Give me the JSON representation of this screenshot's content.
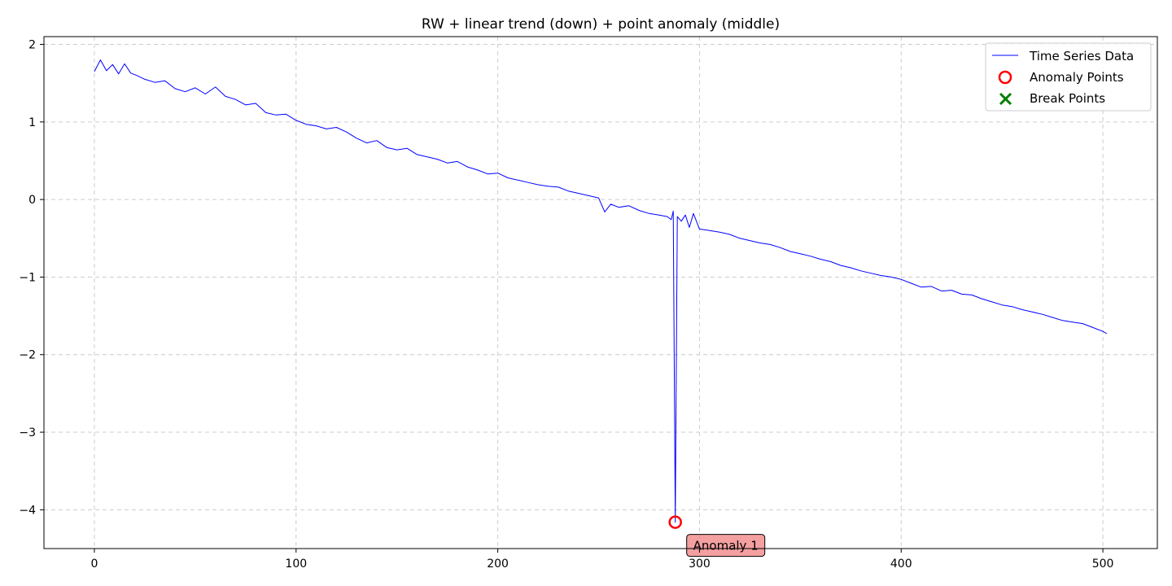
{
  "chart_data": {
    "type": "line",
    "title": "RW + linear trend (down) + point anomaly (middle)",
    "xlabel": "",
    "ylabel": "",
    "xlim": [
      -25,
      527
    ],
    "ylim": [
      -4.5,
      2.1
    ],
    "x_ticks": [
      0,
      100,
      200,
      300,
      400,
      500
    ],
    "x_tick_labels": [
      "0",
      "100",
      "200",
      "300",
      "400",
      "500"
    ],
    "y_ticks": [
      2,
      1,
      0,
      -1,
      -2,
      -3,
      -4
    ],
    "y_tick_labels": [
      "2",
      "1",
      "0",
      "−1",
      "−2",
      "−3",
      "−4"
    ],
    "grid": true,
    "legend_position": "top-right",
    "series": [
      {
        "name": "Time Series Data",
        "color": "#0000ff",
        "x": [
          0,
          3,
          6,
          9,
          12,
          15,
          18,
          21,
          25,
          30,
          35,
          40,
          45,
          50,
          55,
          60,
          65,
          70,
          75,
          80,
          85,
          90,
          95,
          100,
          105,
          110,
          115,
          120,
          125,
          130,
          135,
          140,
          145,
          150,
          155,
          160,
          165,
          170,
          175,
          180,
          185,
          190,
          195,
          200,
          205,
          210,
          215,
          220,
          225,
          230,
          235,
          240,
          245,
          250,
          253,
          256,
          260,
          265,
          270,
          275,
          280,
          284,
          286,
          287,
          288,
          289,
          291,
          293,
          295,
          297,
          300,
          305,
          310,
          315,
          320,
          325,
          330,
          335,
          340,
          345,
          350,
          355,
          360,
          365,
          370,
          375,
          380,
          385,
          390,
          395,
          400,
          405,
          410,
          415,
          420,
          425,
          430,
          435,
          440,
          445,
          450,
          455,
          460,
          465,
          470,
          475,
          480,
          485,
          490,
          495,
          500,
          502
        ],
        "y": [
          1.65,
          1.8,
          1.66,
          1.74,
          1.62,
          1.75,
          1.63,
          1.6,
          1.55,
          1.51,
          1.53,
          1.43,
          1.39,
          1.44,
          1.36,
          1.45,
          1.33,
          1.29,
          1.22,
          1.24,
          1.12,
          1.09,
          1.1,
          1.02,
          0.97,
          0.95,
          0.91,
          0.93,
          0.87,
          0.79,
          0.73,
          0.76,
          0.67,
          0.64,
          0.66,
          0.58,
          0.55,
          0.52,
          0.47,
          0.49,
          0.42,
          0.38,
          0.33,
          0.34,
          0.28,
          0.25,
          0.22,
          0.19,
          0.17,
          0.16,
          0.11,
          0.08,
          0.05,
          0.02,
          -0.16,
          -0.06,
          -0.1,
          -0.08,
          -0.14,
          -0.18,
          -0.2,
          -0.22,
          -0.26,
          -0.15,
          -4.16,
          -0.22,
          -0.28,
          -0.2,
          -0.36,
          -0.18,
          -0.38,
          -0.4,
          -0.42,
          -0.45,
          -0.5,
          -0.53,
          -0.56,
          -0.58,
          -0.62,
          -0.67,
          -0.7,
          -0.73,
          -0.77,
          -0.8,
          -0.85,
          -0.88,
          -0.92,
          -0.95,
          -0.98,
          -1.0,
          -1.03,
          -1.08,
          -1.13,
          -1.12,
          -1.18,
          -1.17,
          -1.22,
          -1.23,
          -1.28,
          -1.32,
          -1.36,
          -1.38,
          -1.42,
          -1.45,
          -1.48,
          -1.52,
          -1.56,
          -1.58,
          -1.6,
          -1.65,
          -1.7,
          -1.73
        ]
      }
    ],
    "anomaly_points": {
      "name": "Anomaly Points",
      "color": "#ff0000",
      "points": [
        {
          "x": 288,
          "y": -4.16
        }
      ]
    },
    "break_points": {
      "name": "Break Points",
      "color": "#008000",
      "points": []
    },
    "annotations": [
      {
        "text": "Anomaly 1",
        "x": 288,
        "y": -4.16
      }
    ]
  }
}
